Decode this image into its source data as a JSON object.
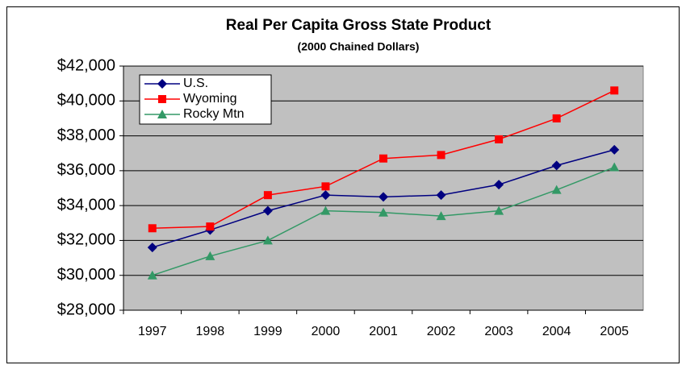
{
  "chart_data": {
    "type": "line",
    "title": "Real Per Capita Gross State Product",
    "subtitle": "(2000 Chained Dollars)",
    "categories": [
      "1997",
      "1998",
      "1999",
      "2000",
      "2001",
      "2002",
      "2003",
      "2004",
      "2005"
    ],
    "series": [
      {
        "name": "U.S.",
        "color": "#000080",
        "marker": "diamond",
        "values": [
          31600,
          32600,
          33700,
          34600,
          34500,
          34600,
          35200,
          36300,
          37200
        ]
      },
      {
        "name": "Wyoming",
        "color": "#ff0000",
        "marker": "square",
        "values": [
          32700,
          32800,
          34600,
          35100,
          36700,
          36900,
          37800,
          39000,
          40600
        ]
      },
      {
        "name": "Rocky Mtn",
        "color": "#339966",
        "marker": "triangle",
        "values": [
          30000,
          31100,
          32000,
          33700,
          33600,
          33400,
          33700,
          34900,
          36200
        ]
      }
    ],
    "ylim": [
      28000,
      42000
    ],
    "yticks": [
      {
        "value": 28000,
        "label": "$28,000"
      },
      {
        "value": 30000,
        "label": "$30,000"
      },
      {
        "value": 32000,
        "label": "$32,000"
      },
      {
        "value": 34000,
        "label": "$34,000"
      },
      {
        "value": 36000,
        "label": "$36,000"
      },
      {
        "value": 38000,
        "label": "$38,000"
      },
      {
        "value": 40000,
        "label": "$40,000"
      },
      {
        "value": 42000,
        "label": "$42,000"
      }
    ],
    "grid": true,
    "legend": "top-left"
  }
}
